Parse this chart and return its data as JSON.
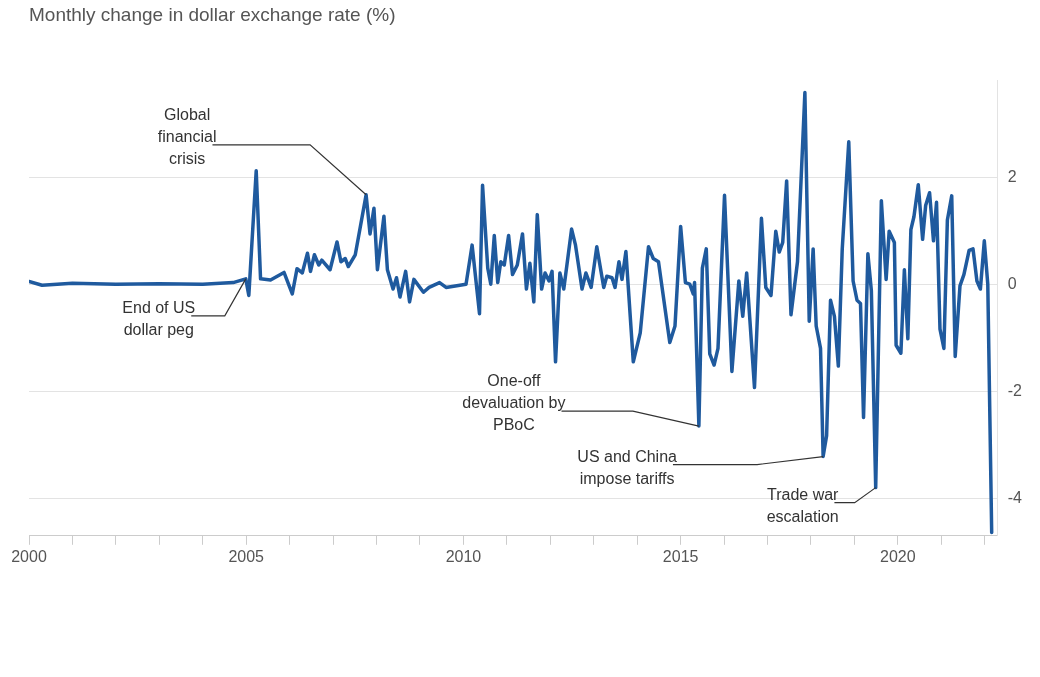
{
  "chart_data": {
    "type": "line",
    "title": "Monthly change in dollar exchange rate (%)",
    "xlim": [
      2000,
      2022.3
    ],
    "ylim": [
      -4.7,
      3.8
    ],
    "xticks": [
      2000,
      {
        "value": 2001,
        "label": null
      },
      {
        "value": 2002,
        "label": null
      },
      {
        "value": 2003,
        "label": null
      },
      {
        "value": 2004,
        "label": null
      },
      2005,
      {
        "value": 2006,
        "label": null
      },
      {
        "value": 2007,
        "label": null
      },
      {
        "value": 2008,
        "label": null
      },
      {
        "value": 2009,
        "label": null
      },
      2010,
      {
        "value": 2011,
        "label": null
      },
      {
        "value": 2012,
        "label": null
      },
      {
        "value": 2013,
        "label": null
      },
      {
        "value": 2014,
        "label": null
      },
      2015,
      {
        "value": 2016,
        "label": null
      },
      {
        "value": 2017,
        "label": null
      },
      {
        "value": 2018,
        "label": null
      },
      {
        "value": 2019,
        "label": null
      },
      2020,
      {
        "value": 2021,
        "label": null
      },
      {
        "value": 2022,
        "label": null
      }
    ],
    "yticks": [
      -4,
      -2,
      0,
      2
    ],
    "grid": "y",
    "marker": "none",
    "line_style": "solid",
    "series": [
      {
        "color": "#1f5a9e",
        "x": [
          2000,
          2000.3,
          2001,
          2002,
          2003,
          2004,
          2004.7,
          2004.99,
          2005.06,
          2005.23,
          2005.33,
          2005.56,
          2005.87,
          2006.06,
          2006.17,
          2006.29,
          2006.41,
          2006.48,
          2006.57,
          2006.67,
          2006.74,
          2006.93,
          2007.09,
          2007.18,
          2007.28,
          2007.35,
          2007.51,
          2007.76,
          2007.85,
          2007.94,
          2008.02,
          2008.17,
          2008.25,
          2008.38,
          2008.46,
          2008.54,
          2008.67,
          2008.76,
          2008.86,
          2009.08,
          2009.21,
          2009.45,
          2009.6,
          2010.06,
          2010.2,
          2010.37,
          2010.44,
          2010.56,
          2010.63,
          2010.71,
          2010.79,
          2010.86,
          2010.94,
          2011.04,
          2011.13,
          2011.24,
          2011.36,
          2011.45,
          2011.53,
          2011.62,
          2011.7,
          2011.8,
          2011.88,
          2011.97,
          2012.04,
          2012.12,
          2012.22,
          2012.31,
          2012.49,
          2012.58,
          2012.73,
          2012.82,
          2012.94,
          2013.07,
          2013.23,
          2013.3,
          2013.42,
          2013.49,
          2013.58,
          2013.65,
          2013.74,
          2013.91,
          2014.07,
          2014.26,
          2014.37,
          2014.49,
          2014.75,
          2014.87,
          2015,
          2015.11,
          2015.21,
          2015.29,
          2015.32,
          2015.42,
          2015.5,
          2015.59,
          2015.67,
          2015.77,
          2015.86,
          2016.01,
          2016.18,
          2016.34,
          2016.43,
          2016.52,
          2016.7,
          2016.86,
          2016.96,
          2017.08,
          2017.19,
          2017.27,
          2017.35,
          2017.44,
          2017.54,
          2017.69,
          2017.86,
          2017.96,
          2018.05,
          2018.12,
          2018.22,
          2018.28,
          2018.36,
          2018.45,
          2018.54,
          2018.63,
          2018.72,
          2018.87,
          2018.97,
          2019.06,
          2019.14,
          2019.21,
          2019.31,
          2019.39,
          2019.49,
          2019.62,
          2019.73,
          2019.8,
          2019.92,
          2019.96,
          2020.07,
          2020.15,
          2020.23,
          2020.3,
          2020.37,
          2020.47,
          2020.57,
          2020.64,
          2020.73,
          2020.82,
          2020.89,
          2020.97,
          2021.06,
          2021.14,
          2021.24,
          2021.32,
          2021.43,
          2021.52,
          2021.64,
          2021.73,
          2021.82,
          2021.9,
          2021.99,
          2022.07,
          2022.16
        ],
        "values": [
          0.05,
          -0.02,
          0.02,
          0,
          0.01,
          0,
          0.03,
          0.1,
          -0.21,
          2.12,
          0.1,
          0.08,
          0.22,
          -0.18,
          0.29,
          0.21,
          0.58,
          0.24,
          0.55,
          0.36,
          0.45,
          0.27,
          0.79,
          0.42,
          0.48,
          0.33,
          0.55,
          1.67,
          0.94,
          1.42,
          0.27,
          1.27,
          0.27,
          -0.09,
          0.12,
          -0.24,
          0.24,
          -0.33,
          0.09,
          -0.15,
          -0.06,
          0.03,
          -0.06,
          0,
          0.73,
          -0.55,
          1.85,
          0.3,
          0,
          0.91,
          0.03,
          0.42,
          0.36,
          0.91,
          0.18,
          0.36,
          0.94,
          -0.09,
          0.39,
          -0.33,
          1.3,
          -0.09,
          0.21,
          0.06,
          0.24,
          -1.45,
          0.21,
          -0.09,
          1.03,
          0.73,
          -0.09,
          0.21,
          -0.06,
          0.7,
          -0.06,
          0.15,
          0.12,
          -0.06,
          0.42,
          0.09,
          0.61,
          -1.45,
          -0.91,
          0.7,
          0.48,
          0.42,
          -1.09,
          -0.78,
          1.08,
          0.03,
          0,
          -0.18,
          0.03,
          -2.65,
          0.3,
          0.66,
          -1.3,
          -1.51,
          -1.2,
          1.66,
          -1.63,
          0.06,
          -0.6,
          0.21,
          -1.93,
          1.23,
          -0.06,
          -0.21,
          0.99,
          0.6,
          0.78,
          1.93,
          -0.57,
          0.42,
          3.58,
          -0.69,
          0.66,
          -0.78,
          -1.2,
          -3.22,
          -2.83,
          -0.3,
          -0.6,
          -1.53,
          0.66,
          2.66,
          0.06,
          -0.3,
          -0.36,
          -2.49,
          0.57,
          -0.12,
          -3.8,
          1.56,
          0.09,
          0.99,
          0.78,
          -1.14,
          -1.29,
          0.27,
          -1.02,
          1.02,
          1.26,
          1.86,
          0.84,
          1.47,
          1.71,
          0.81,
          1.53,
          -0.84,
          -1.2,
          1.2,
          1.65,
          -1.35,
          -0.03,
          0.18,
          0.63,
          0.66,
          0.06,
          -0.09,
          0.81,
          0,
          -4.64
        ]
      }
    ],
    "annotations": [
      {
        "text": "Global financial crisis",
        "x": 2007.76,
        "y": 1.67
      },
      {
        "text": "End of US dollar peg",
        "x": 2004.99,
        "y": 0.1
      },
      {
        "text": "One-off devaluation by PBoC",
        "x": 2015.42,
        "y": -2.65
      },
      {
        "text": "US and China impose tariffs",
        "x": 2018.28,
        "y": -3.22
      },
      {
        "text": "Trade war escalation",
        "x": 2019.49,
        "y": -3.8
      }
    ]
  }
}
